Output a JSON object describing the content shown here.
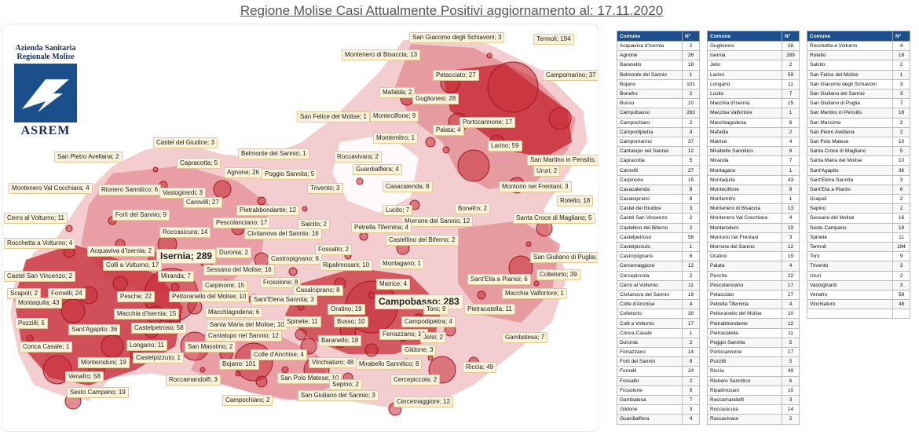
{
  "title": "Regione Molise Casi Attualmente Positivi aggiornamento al: 17.11.2020",
  "logo": {
    "line1": "Azienda Sanitaria",
    "line2": "Regionale Molise",
    "name": "ASREM"
  },
  "colors": {
    "dark": "#c8303a",
    "mid": "#e28a92",
    "light": "#f3cdd0",
    "header": "#1f4e8c"
  },
  "table": {
    "col_comune": "Comune",
    "col_n": "N°",
    "col1": [
      [
        "Acquaviva d'Isernia",
        "2"
      ],
      [
        "Agnone",
        "26"
      ],
      [
        "Baranello",
        "18"
      ],
      [
        "Belmonte del Sannio",
        "1"
      ],
      [
        "Bojano",
        "101"
      ],
      [
        "Bonefro",
        "2"
      ],
      [
        "Busso",
        "10"
      ],
      [
        "Campobasso",
        "283"
      ],
      [
        "Campochiaro",
        "2"
      ],
      [
        "Campodipietra",
        "4"
      ],
      [
        "Campomarino",
        "37"
      ],
      [
        "Cantalupo nel Sannio",
        "12"
      ],
      [
        "Capracotta",
        "5"
      ],
      [
        "Carovilli",
        "27"
      ],
      [
        "Carpinone",
        "15"
      ],
      [
        "Casacalenda",
        "8"
      ],
      [
        "Casalciprano",
        "8"
      ],
      [
        "Castel del Giudice",
        "3"
      ],
      [
        "Castel San Vincenzo",
        "2"
      ],
      [
        "Castellino del Biferno",
        "2"
      ],
      [
        "Castelpetroso",
        "58"
      ],
      [
        "Castelpizzuto",
        "1"
      ],
      [
        "Castropignano",
        "6"
      ],
      [
        "Cercemaggiore",
        "12"
      ],
      [
        "Cercepiccola",
        "2"
      ],
      [
        "Cerro al Volturno",
        "11"
      ],
      [
        "Civitanova del Sannio",
        "16"
      ],
      [
        "Colle d'Anchise",
        "4"
      ],
      [
        "Colletorto",
        "39"
      ],
      [
        "Colli a Volturno",
        "17"
      ],
      [
        "Conca Casale",
        "1"
      ],
      [
        "Duronia",
        "2"
      ],
      [
        "Ferrazzano",
        "14"
      ],
      [
        "Forli del Sannio",
        "9"
      ],
      [
        "Fornelli",
        "24"
      ],
      [
        "Fossalto",
        "2"
      ],
      [
        "Frosolone",
        "8"
      ],
      [
        "Gambatesa",
        "7"
      ],
      [
        "Gildone",
        "3"
      ],
      [
        "Guardialfiera",
        "4"
      ]
    ],
    "col2": [
      [
        "Guglionesi",
        "28"
      ],
      [
        "Isernia",
        "289"
      ],
      [
        "Jelsi",
        "2"
      ],
      [
        "Larino",
        "59"
      ],
      [
        "Longano",
        "11"
      ],
      [
        "Lucito",
        "7"
      ],
      [
        "Macchia d'Isernia",
        "15"
      ],
      [
        "Macchia Valfortore",
        "1"
      ],
      [
        "Macchiagodena",
        "6"
      ],
      [
        "Mafalda",
        "2"
      ],
      [
        "Matrice",
        "4"
      ],
      [
        "Mirabello Sannitico",
        "8"
      ],
      [
        "Miranda",
        "7"
      ],
      [
        "Montagano",
        "1"
      ],
      [
        "Montaquila",
        "43"
      ],
      [
        "Montecilfone",
        "9"
      ],
      [
        "Montemitro",
        "1"
      ],
      [
        "Montenero di Bisaccia",
        "13"
      ],
      [
        "Montenero Val Cocchiara",
        "4"
      ],
      [
        "Monteroduni",
        "19"
      ],
      [
        "Montorio nei Frentani",
        "3"
      ],
      [
        "Morrone del Sannio",
        "12"
      ],
      [
        "Oratino",
        "19"
      ],
      [
        "Palata",
        "4"
      ],
      [
        "Pesche",
        "22"
      ],
      [
        "Pescolanciano",
        "17"
      ],
      [
        "Petacciato",
        "27"
      ],
      [
        "Petrella Tifernina",
        "4"
      ],
      [
        "Pettoranello del Molise",
        "10"
      ],
      [
        "Pietrabbondante",
        "12"
      ],
      [
        "Pietracatella",
        "11"
      ],
      [
        "Poggio Sannita",
        "5"
      ],
      [
        "Portocannone",
        "17"
      ],
      [
        "Pozzilli",
        "5"
      ],
      [
        "Riccia",
        "49"
      ],
      [
        "Rionero Sannitico",
        "6"
      ],
      [
        "Ripalimosani",
        "10"
      ],
      [
        "Roccamandolfi",
        "3"
      ],
      [
        "Roccasicura",
        "14"
      ],
      [
        "Roccavivara",
        "2"
      ]
    ],
    "col3": [
      [
        "Rocchetta a Volturno",
        "4"
      ],
      [
        "Rotello",
        "18"
      ],
      [
        "Salcito",
        "2"
      ],
      [
        "San Felice del Molise",
        "1"
      ],
      [
        "San Giacomo degli Schiavoni",
        "3"
      ],
      [
        "San Giuliano del Sannio",
        "3"
      ],
      [
        "San Giuliano di Puglia",
        "7"
      ],
      [
        "San Martino in Pensilis",
        "18"
      ],
      [
        "San Massimo",
        "2"
      ],
      [
        "San Pietro Avellana",
        "2"
      ],
      [
        "San Polo Matese",
        "10"
      ],
      [
        "Santa Croce di Magliano",
        "5"
      ],
      [
        "Santa Maria del Molise",
        "10"
      ],
      [
        "Sant'Agapito",
        "36"
      ],
      [
        "Sant'Elena Sannita",
        "3"
      ],
      [
        "Sant'Elia a Pianisi",
        "6"
      ],
      [
        "Scapoli",
        "2"
      ],
      [
        "Sepino",
        "2"
      ],
      [
        "Sessano del Molise",
        "16"
      ],
      [
        "Sesto Campano",
        "19"
      ],
      [
        "Spinete",
        "11"
      ],
      [
        "Termoli",
        "194"
      ],
      [
        "Toro",
        "9"
      ],
      [
        "Trivento",
        "3"
      ],
      [
        "Ururi",
        "2"
      ],
      [
        "Vastogirardi",
        "3"
      ],
      [
        "Venafro",
        "58"
      ],
      [
        "Vinchiaturo",
        "48"
      ],
      [
        "",
        ""
      ]
    ]
  },
  "map_labels": [
    "San Giacomo degli Schiavoni; 3",
    "Termoli; 194",
    "Montenero di Bisaccia; 13",
    "Petacciato; 27",
    "Campomarino; 37",
    "Mafalda; 2",
    "Guglionesi; 28",
    "San Felice del Molise; 1",
    "Montecilfone; 9",
    "Portocannone; 17",
    "Palata; 4",
    "Montemitro; 1",
    "Castel del Giudice; 3",
    "Larino; 59",
    "San Martino in Pensilis; 18",
    "Belmonte del Sannio; 1",
    "Roccavivara; 2",
    "San Pietro Avellana; 2",
    "Capracotta; 5",
    "Agnone; 26",
    "Guardialfiera; 4",
    "Ururi; 2",
    "Poggio Sannita; 5",
    "Montenero Val Cocchiara; 4",
    "Rionero Sannitico; 6",
    "Vastogirardi; 3",
    "Trivento; 3",
    "Casacalenda; 8",
    "Montorio nei Frentani; 3",
    "Carovilli; 27",
    "Rotello; 18",
    "Cerro al Volturno; 11",
    "Forlì del Sannio; 9",
    "Pietrabbondante; 12",
    "Lucito; 7",
    "Bonefro; 2",
    "Roccasicura; 14",
    "Pescolanciano; 17",
    "Salcito; 2",
    "Morrone del Sannio; 12",
    "Santa Croce di Magliano; 5",
    "Rocchetta a Volturno; 4",
    "Civitanova del Sannio; 16",
    "Petrella Tifernina; 4",
    "Acquaviva d'Isernia; 2",
    "Isernia; 289",
    "Duronia; 2",
    "Castellino del Biferno; 2",
    "Fossalto; 2",
    "San Giuliano di Puglia; 7",
    "Colli a Volturno; 17",
    "Castropignano; 6",
    "Castel San Vincenzo; 2",
    "Sessano del Molise; 16",
    "Ripalimosani; 10",
    "Montagano; 1",
    "Miranda; 7",
    "Colletorto; 39",
    "Fornelli; 24",
    "Carpinone; 15",
    "Frosolone; 8",
    "Matrice; 4",
    "Sant'Elia a Pianisi; 6",
    "Scapoli; 2",
    "Pesche; 22",
    "Casalciprano; 8",
    "Macchia Valfortore; 1",
    "Montaquila; 43",
    "Pettoranello del Molise; 10",
    "Sant'Elena Sannita; 3",
    "Campobasso; 283",
    "Toro; 9",
    "Macchia d'Isernia; 15",
    "Macchiagodena; 6",
    "Oratino; 19",
    "Pietracatella; 11",
    "Pozzilli; 5",
    "Santa Maria del Molise; 10",
    "Spinete; 11",
    "Busso; 10",
    "Campodipietra; 4",
    "Sant'Agapito; 36",
    "Castelpetroso; 58",
    "Cantalupo nel Sannio; 12",
    "Ferrazzano; 14",
    "Gambatesa; 7",
    "Conca Casale; 1",
    "Longano; 11",
    "San Massimo; 2",
    "Baranello; 18",
    "Jelsi; 2",
    "Castelpizzuto; 1",
    "Colle d'Anchise; 4",
    "Gildone; 3",
    "Monteroduni; 19",
    "Vinchiaturo; 48",
    "Riccia; 49",
    "Roccamandolfi; 3",
    "Bojano; 101",
    "Mirabello Sannitico; 8",
    "Venafro; 58",
    "San Polo Matese; 10",
    "Cercepiccola; 2",
    "Sepino; 2",
    "Sesto Campano; 19",
    "Campochiaro; 2",
    "San Giuliano del Sannio; 3",
    "Cercemaggiore; 12"
  ]
}
